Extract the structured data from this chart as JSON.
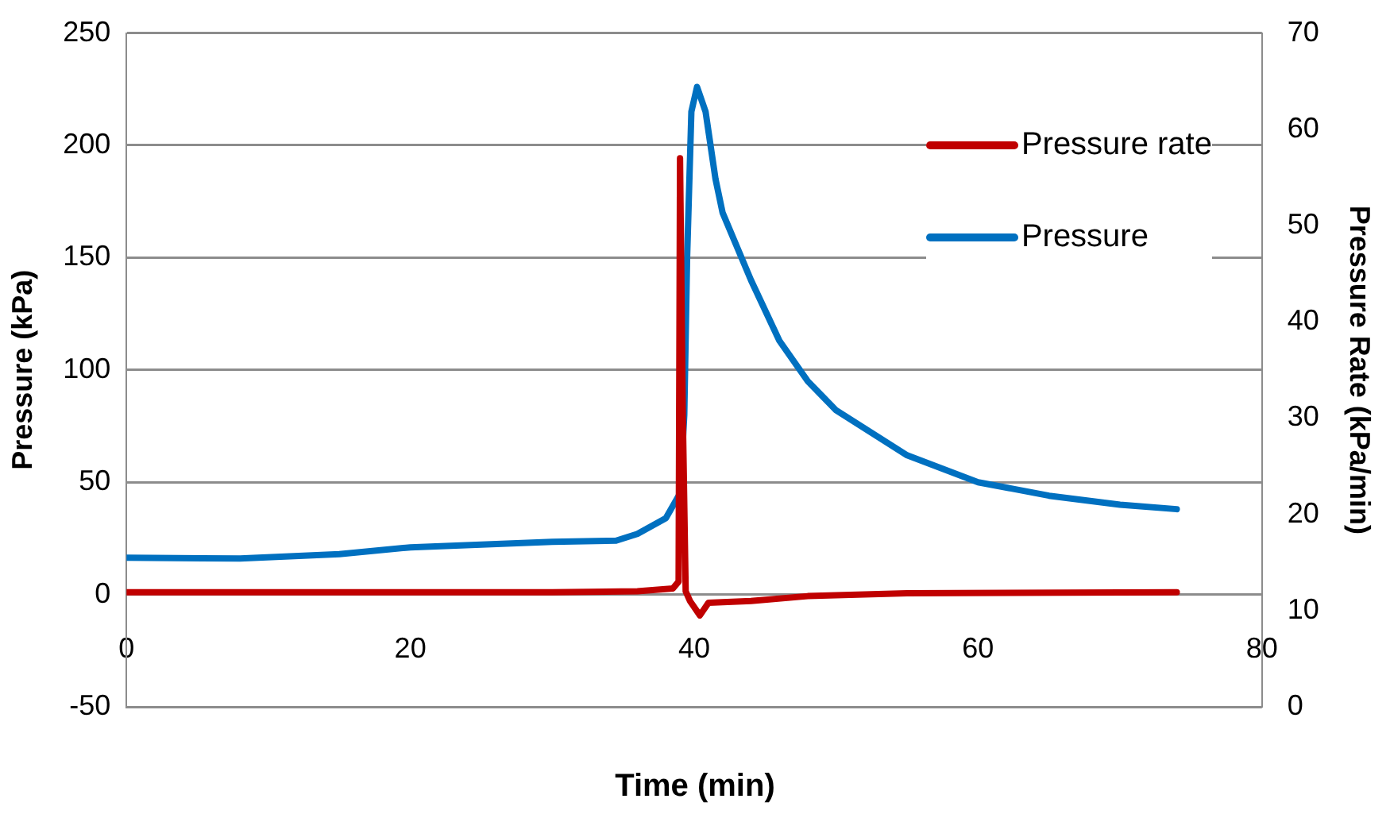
{
  "chart_data": {
    "type": "line",
    "xlabel": "Time (min)",
    "ylabel": "Pressure (kPa)",
    "y2label": "Pressure Rate (kPa/min)",
    "xlim": [
      0,
      80
    ],
    "xticks": [
      0,
      20,
      40,
      60,
      80
    ],
    "ylim": [
      -50,
      250
    ],
    "yticks": [
      -50,
      0,
      50,
      100,
      150,
      200,
      250
    ],
    "y2lim": [
      0,
      70
    ],
    "y2ticks": [
      0,
      10,
      20,
      30,
      40,
      50,
      60,
      70
    ],
    "grid": "y",
    "legend": "top right",
    "marker": "none",
    "series": [
      {
        "name": "Pressure rate",
        "color": "#c00000",
        "axis": "y2",
        "x": [
          0,
          30,
          36,
          38.5,
          38.9,
          39.0,
          39.2,
          39.4,
          39.7,
          40.4,
          41,
          44,
          48,
          55,
          74
        ],
        "values": [
          11.9,
          11.9,
          12,
          12.3,
          13,
          57,
          30,
          12,
          11,
          9.5,
          10.8,
          11,
          11.5,
          11.8,
          11.9
        ]
      },
      {
        "name": "Pressure",
        "color": "#0070c0",
        "x": [
          0,
          8,
          15,
          20,
          30,
          34.5,
          36,
          38,
          39,
          39.3,
          39.5,
          39.8,
          40.2,
          40.8,
          41.5,
          42,
          44,
          46,
          48,
          50,
          55,
          60,
          65,
          70,
          74
        ],
        "values": [
          16.4,
          16,
          18,
          21,
          23.5,
          24,
          27,
          34,
          45,
          80,
          150,
          215,
          226,
          215,
          185,
          170,
          140,
          113,
          95,
          82,
          62,
          50,
          44,
          40,
          38
        ]
      }
    ]
  }
}
